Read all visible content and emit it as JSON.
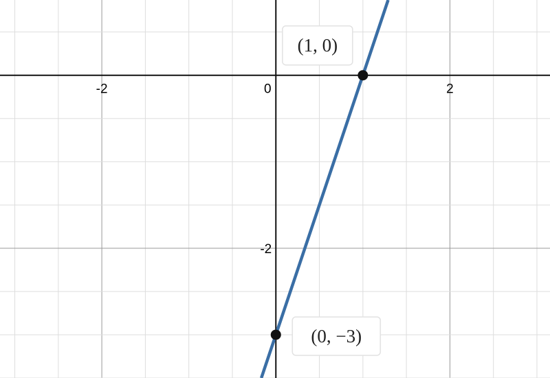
{
  "chart_data": {
    "type": "line",
    "xlim": [
      -3.17,
      3.15
    ],
    "ylim": [
      -3.5,
      0.87
    ],
    "xticks": [
      -2,
      0,
      2
    ],
    "yticks": [
      -2
    ],
    "grid_step": 0.5,
    "major_grid_step": 2,
    "series": [
      {
        "color": "#3a6ea5",
        "x": [
          -0.167,
          1.29
        ],
        "values": [
          -3.5,
          0.87
        ]
      }
    ],
    "points": [
      {
        "x": 1,
        "y": 0,
        "label": "(1, 0)"
      },
      {
        "x": 0,
        "y": -3,
        "label": "(0, −3)"
      }
    ]
  }
}
